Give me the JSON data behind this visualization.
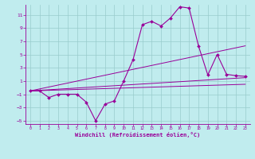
{
  "xlabel": "Windchill (Refroidissement éolien,°C)",
  "bg_color": "#c0ecee",
  "line_color": "#990099",
  "grid_color": "#99cccc",
  "xlim": [
    -0.5,
    23.5
  ],
  "ylim": [
    -5.5,
    12.5
  ],
  "xticks": [
    0,
    1,
    2,
    3,
    4,
    5,
    6,
    7,
    8,
    9,
    10,
    11,
    12,
    13,
    14,
    15,
    16,
    17,
    18,
    19,
    20,
    21,
    22,
    23
  ],
  "yticks": [
    -5,
    -3,
    -1,
    1,
    3,
    5,
    7,
    9,
    11
  ],
  "main_x": [
    0,
    1,
    2,
    3,
    4,
    5,
    6,
    7,
    8,
    9,
    10,
    11,
    12,
    13,
    14,
    15,
    16,
    17,
    18,
    19,
    20,
    21,
    22,
    23
  ],
  "main_y": [
    -0.5,
    -0.5,
    -1.5,
    -1.0,
    -1.0,
    -1.0,
    -2.2,
    -5.0,
    -2.5,
    -2.0,
    1.0,
    4.2,
    9.5,
    10.0,
    9.3,
    10.5,
    12.2,
    12.0,
    6.3,
    1.9,
    5.0,
    2.0,
    1.8,
    1.7
  ],
  "trend1_x": [
    0,
    23
  ],
  "trend1_y": [
    -0.5,
    6.3
  ],
  "trend2_x": [
    0,
    23
  ],
  "trend2_y": [
    -0.5,
    1.5
  ],
  "trend3_x": [
    0,
    23
  ],
  "trend3_y": [
    -0.5,
    0.5
  ]
}
